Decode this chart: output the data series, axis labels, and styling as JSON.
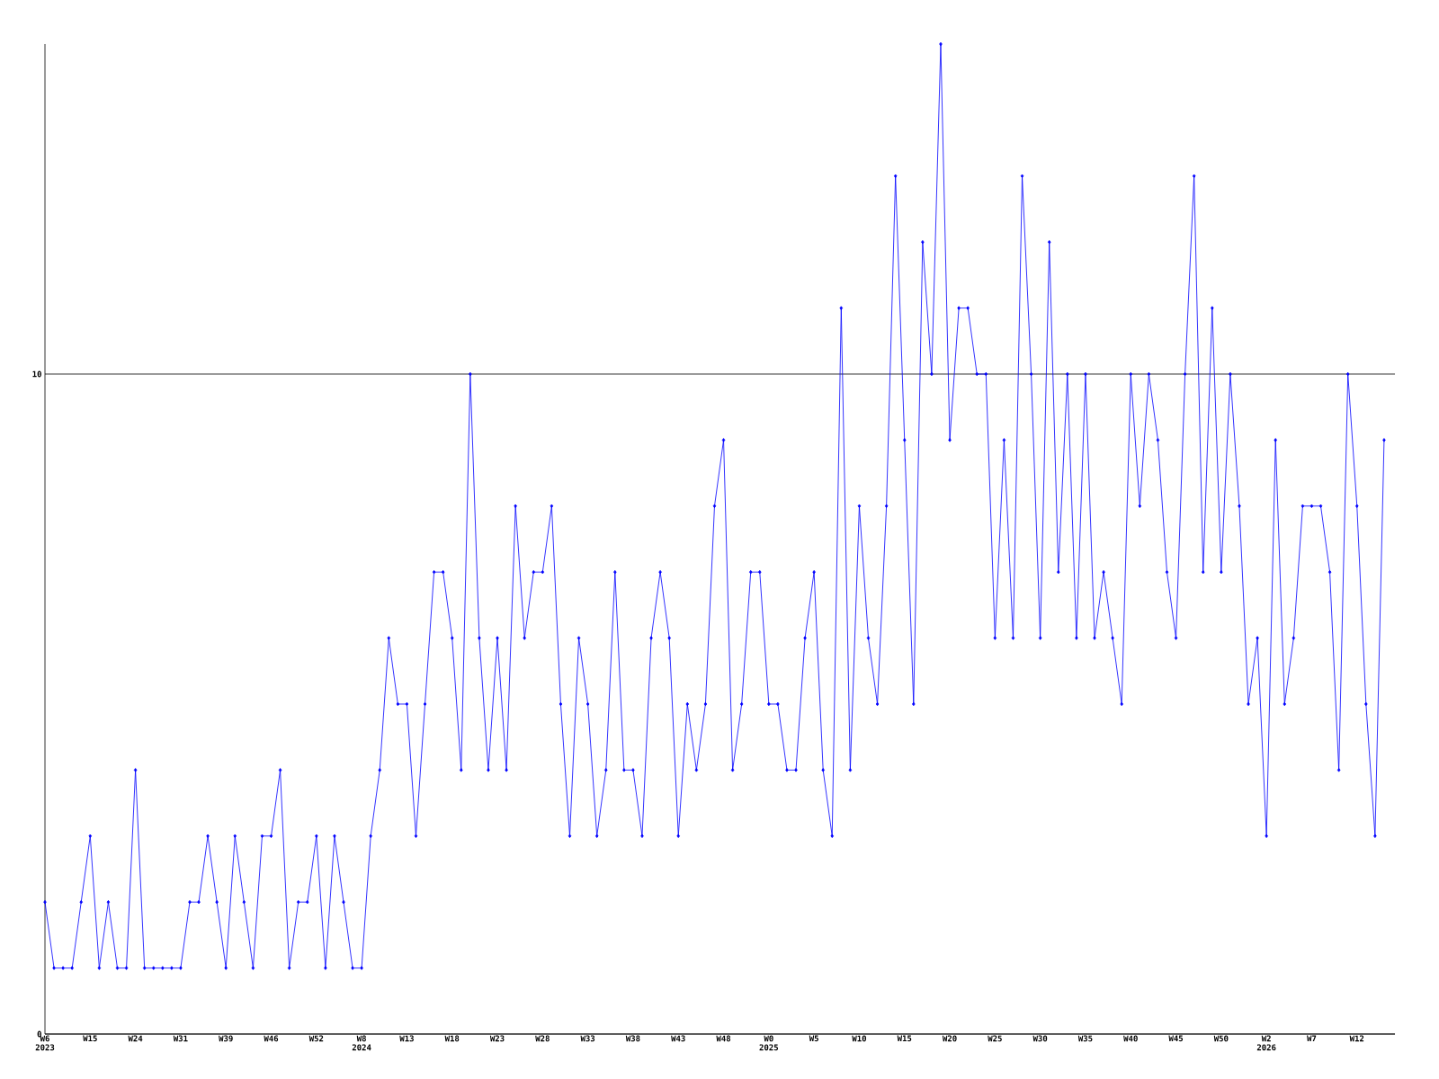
{
  "chart_data": {
    "type": "line",
    "categories": [
      "W6 2023",
      null,
      null,
      null,
      null,
      "W15",
      null,
      null,
      null,
      null,
      "W24",
      null,
      null,
      null,
      null,
      "W31",
      null,
      null,
      null,
      null,
      "W39",
      null,
      null,
      null,
      null,
      "W46",
      null,
      null,
      null,
      null,
      "W52",
      null,
      null,
      null,
      null,
      "W8 2024",
      null,
      null,
      null,
      null,
      "W13",
      null,
      null,
      null,
      null,
      "W18",
      null,
      null,
      null,
      null,
      "W23",
      null,
      null,
      null,
      null,
      "W28",
      null,
      null,
      null,
      null,
      "W33",
      null,
      null,
      null,
      null,
      "W38",
      null,
      null,
      null,
      null,
      "W43",
      null,
      null,
      null,
      null,
      "W48",
      null,
      null,
      null,
      null,
      "W0 2025",
      null,
      null,
      null,
      null,
      "W5",
      null,
      null,
      null,
      null,
      "W10",
      null,
      null,
      null,
      null,
      "W15",
      null,
      null,
      null,
      null,
      "W20",
      null,
      null,
      null,
      null,
      "W25",
      null,
      null,
      null,
      null,
      "W30",
      null,
      null,
      null,
      null,
      "W35",
      null,
      null,
      null,
      null,
      "W40",
      null,
      null,
      null,
      null,
      "W45",
      null,
      null,
      null,
      null,
      "W50",
      null,
      null,
      null,
      null,
      "W2 2026",
      null,
      null,
      null,
      null,
      "W7",
      null,
      null,
      null,
      null,
      "W12",
      null,
      null,
      null
    ],
    "values": [
      2,
      1,
      1,
      1,
      2,
      3,
      1,
      2,
      1,
      1,
      4,
      1,
      1,
      1,
      1,
      1,
      2,
      2,
      3,
      2,
      1,
      3,
      2,
      1,
      3,
      3,
      4,
      1,
      2,
      2,
      3,
      1,
      3,
      2,
      1,
      1,
      3,
      4,
      6,
      5,
      5,
      3,
      5,
      7,
      7,
      6,
      4,
      10,
      6,
      4,
      6,
      4,
      8,
      6,
      7,
      7,
      8,
      5,
      3,
      6,
      5,
      3,
      4,
      7,
      4,
      4,
      3,
      6,
      7,
      6,
      3,
      5,
      4,
      5,
      8,
      9,
      4,
      5,
      7,
      7,
      5,
      5,
      4,
      4,
      6,
      7,
      4,
      3,
      11,
      4,
      8,
      6,
      5,
      8,
      13,
      9,
      5,
      12,
      10,
      15,
      9,
      11,
      11,
      10,
      10,
      6,
      9,
      6,
      13,
      10,
      6,
      12,
      7,
      10,
      6,
      10,
      6,
      7,
      6,
      5,
      10,
      8,
      10,
      9,
      7,
      6,
      10,
      13,
      7,
      11,
      7,
      10,
      8,
      5,
      6,
      3,
      9,
      5,
      6,
      8,
      8,
      8,
      7,
      4,
      10,
      8,
      5,
      3,
      9
    ],
    "color": "#0000ff",
    "ylim": [
      0,
      15
    ],
    "yticks": [
      0,
      10
    ],
    "grid": "y",
    "marker": "diamond",
    "line_style": "solid"
  }
}
